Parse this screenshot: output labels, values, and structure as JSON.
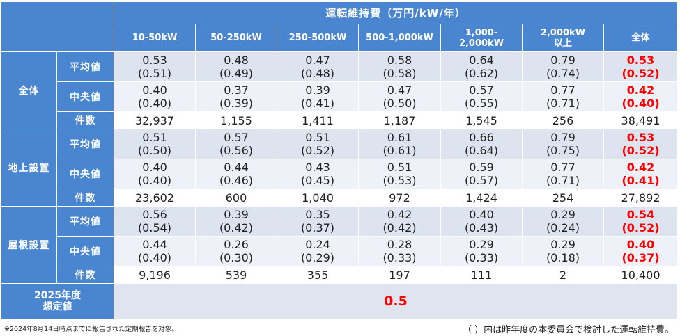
{
  "title": "運転維持費（万円/kW/年）",
  "columns": [
    "10-50kW",
    "50-250kW",
    "250-500kW",
    "500-1,000kW",
    "1,000-\n2,000kW",
    "2,000kW\n以上",
    "全体"
  ],
  "groups": [
    {
      "name": "全体",
      "rows": [
        {
          "label": "平均値",
          "values": [
            [
              "0.53",
              "(0.51)"
            ],
            [
              "0.48",
              "(0.49)"
            ],
            [
              "0.47",
              "(0.48)"
            ],
            [
              "0.58",
              "(0.58)"
            ],
            [
              "0.64",
              "(0.62)"
            ],
            [
              "0.79",
              "(0.74)"
            ],
            [
              "0.53",
              "(0.52)"
            ]
          ]
        },
        {
          "label": "中央値",
          "values": [
            [
              "0.40",
              "(0.40)"
            ],
            [
              "0.37",
              "(0.39)"
            ],
            [
              "0.39",
              "(0.41)"
            ],
            [
              "0.47",
              "(0.50)"
            ],
            [
              "0.57",
              "(0.55)"
            ],
            [
              "0.77",
              "(0.71)"
            ],
            [
              "0.42",
              "(0.40)"
            ]
          ]
        },
        {
          "label": "件数",
          "values": [
            [
              "32,937"
            ],
            [
              "1,155"
            ],
            [
              "1,411"
            ],
            [
              "1,187"
            ],
            [
              "1,545"
            ],
            [
              "256"
            ],
            [
              "38,491"
            ]
          ]
        }
      ]
    },
    {
      "name": "地上設置",
      "rows": [
        {
          "label": "平均値",
          "values": [
            [
              "0.51",
              "(0.50)"
            ],
            [
              "0.57",
              "(0.56)"
            ],
            [
              "0.51",
              "(0.52)"
            ],
            [
              "0.61",
              "(0.61)"
            ],
            [
              "0.66",
              "(0.64)"
            ],
            [
              "0.79",
              "(0.75)"
            ],
            [
              "0.53",
              "(0.52)"
            ]
          ]
        },
        {
          "label": "中央値",
          "values": [
            [
              "0.40",
              "(0.40)"
            ],
            [
              "0.44",
              "(0.46)"
            ],
            [
              "0.43",
              "(0.45)"
            ],
            [
              "0.51",
              "(0.53)"
            ],
            [
              "0.59",
              "(0.57)"
            ],
            [
              "0.77",
              "(0.71)"
            ],
            [
              "0.42",
              "(0.41)"
            ]
          ]
        },
        {
          "label": "件数",
          "values": [
            [
              "23,602"
            ],
            [
              "600"
            ],
            [
              "1,040"
            ],
            [
              "972"
            ],
            [
              "1,424"
            ],
            [
              "254"
            ],
            [
              "27,892"
            ]
          ]
        }
      ]
    },
    {
      "name": "屋根設置",
      "rows": [
        {
          "label": "平均値",
          "values": [
            [
              "0.56",
              "(0.54)"
            ],
            [
              "0.39",
              "(0.42)"
            ],
            [
              "0.35",
              "(0.37)"
            ],
            [
              "0.42",
              "(0.42)"
            ],
            [
              "0.40",
              "(0.43)"
            ],
            [
              "0.29",
              "(0.24)"
            ],
            [
              "0.54",
              "(0.52)"
            ]
          ]
        },
        {
          "label": "中央値",
          "values": [
            [
              "0.44",
              "(0.40)"
            ],
            [
              "0.26",
              "(0.30)"
            ],
            [
              "0.24",
              "(0.29)"
            ],
            [
              "0.28",
              "(0.33)"
            ],
            [
              "0.29",
              "(0.33)"
            ],
            [
              "0.29",
              "(0.18)"
            ],
            [
              "0.40",
              "(0.37)"
            ]
          ]
        },
        {
          "label": "件数",
          "values": [
            [
              "9,196"
            ],
            [
              "539"
            ],
            [
              "355"
            ],
            [
              "197"
            ],
            [
              "111"
            ],
            [
              "2"
            ],
            [
              "10,400"
            ]
          ]
        }
      ]
    }
  ],
  "estimate": {
    "label": "2025年度\n想定値",
    "value": "0.5"
  },
  "footnote_left": "※2024年8月14日時点までに報告された定期報告を対象。",
  "footnote_right": "（ ）内は昨年度の本委員会で検討した運転維持費。",
  "colors": {
    "header_bg": "#4a86d0",
    "highlight_red": "#ff0000",
    "row_odd": "#dde3ef",
    "row_even": "#eef1f7"
  }
}
